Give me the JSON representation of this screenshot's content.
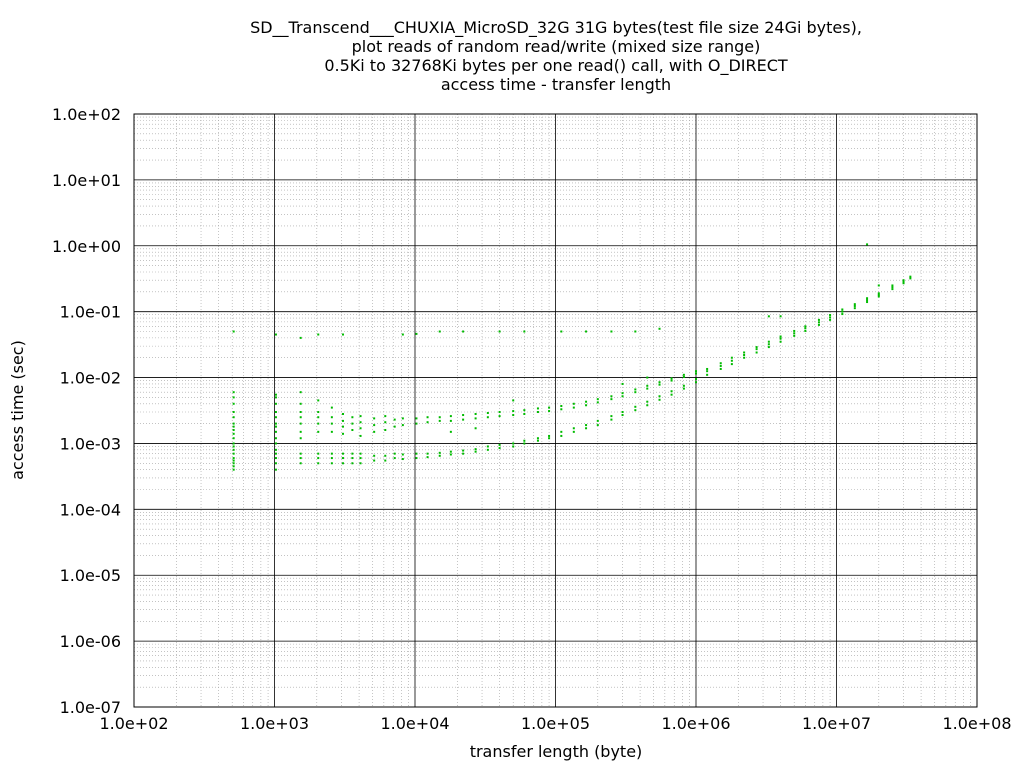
{
  "chart_data": {
    "type": "scatter",
    "title_lines": [
      "SD__Transcend___CHUXIA_MicroSD_32G 31G bytes(test file size 24Gi bytes),",
      "plot reads of random read/write (mixed size range)",
      "0.5Ki to 32768Ki bytes per one read() call, with O_DIRECT",
      "access time - transfer length"
    ],
    "xlabel": "transfer length (byte)",
    "ylabel": "access time (sec)",
    "x_scale": "log",
    "y_scale": "log",
    "xlim": [
      100,
      100000000
    ],
    "ylim": [
      1e-07,
      100
    ],
    "x_ticks": [
      {
        "value": 100,
        "label": "1.0e+02"
      },
      {
        "value": 1000,
        "label": "1.0e+03"
      },
      {
        "value": 10000,
        "label": "1.0e+04"
      },
      {
        "value": 100000,
        "label": "1.0e+05"
      },
      {
        "value": 1000000,
        "label": "1.0e+06"
      },
      {
        "value": 10000000,
        "label": "1.0e+07"
      },
      {
        "value": 100000000,
        "label": "1.0e+08"
      }
    ],
    "y_ticks": [
      {
        "value": 100,
        "label": "1.0e+02"
      },
      {
        "value": 10,
        "label": "1.0e+01"
      },
      {
        "value": 1,
        "label": "1.0e+00"
      },
      {
        "value": 0.1,
        "label": "1.0e-01"
      },
      {
        "value": 0.01,
        "label": "1.0e-02"
      },
      {
        "value": 0.001,
        "label": "1.0e-03"
      },
      {
        "value": 0.0001,
        "label": "1.0e-04"
      },
      {
        "value": 1e-05,
        "label": "1.0e-05"
      },
      {
        "value": 1e-06,
        "label": "1.0e-06"
      },
      {
        "value": 1e-07,
        "label": "1.0e-07"
      }
    ],
    "grid": true,
    "series": [
      {
        "color": "#00bb00",
        "points": [
          [
            512,
            0.0004
          ],
          [
            512,
            0.00045
          ],
          [
            512,
            0.0005
          ],
          [
            512,
            0.00055
          ],
          [
            512,
            0.0006
          ],
          [
            512,
            0.0007
          ],
          [
            512,
            0.0008
          ],
          [
            512,
            0.0009
          ],
          [
            512,
            0.001
          ],
          [
            512,
            0.0012
          ],
          [
            512,
            0.0014
          ],
          [
            512,
            0.0016
          ],
          [
            512,
            0.0018
          ],
          [
            512,
            0.002
          ],
          [
            512,
            0.0025
          ],
          [
            512,
            0.003
          ],
          [
            512,
            0.004
          ],
          [
            512,
            0.005
          ],
          [
            512,
            0.006
          ],
          [
            512,
            0.05
          ],
          [
            1024,
            0.0004
          ],
          [
            1024,
            0.0005
          ],
          [
            1024,
            0.0006
          ],
          [
            1024,
            0.0007
          ],
          [
            1024,
            0.0008
          ],
          [
            1024,
            0.001
          ],
          [
            1024,
            0.0012
          ],
          [
            1024,
            0.0015
          ],
          [
            1024,
            0.0018
          ],
          [
            1024,
            0.002
          ],
          [
            1024,
            0.0025
          ],
          [
            1024,
            0.003
          ],
          [
            1024,
            0.004
          ],
          [
            1024,
            0.005
          ],
          [
            1024,
            0.0055
          ],
          [
            1024,
            0.045
          ],
          [
            1536,
            0.0005
          ],
          [
            1536,
            0.0006
          ],
          [
            1536,
            0.0007
          ],
          [
            1536,
            0.0012
          ],
          [
            1536,
            0.0015
          ],
          [
            1536,
            0.002
          ],
          [
            1536,
            0.0025
          ],
          [
            1536,
            0.003
          ],
          [
            1536,
            0.004
          ],
          [
            1536,
            0.006
          ],
          [
            1536,
            0.04
          ],
          [
            2048,
            0.0005
          ],
          [
            2048,
            0.0006
          ],
          [
            2048,
            0.0007
          ],
          [
            2048,
            0.0015
          ],
          [
            2048,
            0.002
          ],
          [
            2048,
            0.0025
          ],
          [
            2048,
            0.003
          ],
          [
            2048,
            0.0045
          ],
          [
            2048,
            0.045
          ],
          [
            2560,
            0.0005
          ],
          [
            2560,
            0.0006
          ],
          [
            2560,
            0.0007
          ],
          [
            2560,
            0.0015
          ],
          [
            2560,
            0.002
          ],
          [
            2560,
            0.0025
          ],
          [
            2560,
            0.0035
          ],
          [
            3072,
            0.0005
          ],
          [
            3072,
            0.0006
          ],
          [
            3072,
            0.0007
          ],
          [
            3072,
            0.0014
          ],
          [
            3072,
            0.0018
          ],
          [
            3072,
            0.0022
          ],
          [
            3072,
            0.0028
          ],
          [
            3072,
            0.045
          ],
          [
            3584,
            0.0005
          ],
          [
            3584,
            0.0006
          ],
          [
            3584,
            0.0007
          ],
          [
            3584,
            0.0016
          ],
          [
            3584,
            0.002
          ],
          [
            3584,
            0.0025
          ],
          [
            4096,
            0.0005
          ],
          [
            4096,
            0.0006
          ],
          [
            4096,
            0.0007
          ],
          [
            4096,
            0.0013
          ],
          [
            4096,
            0.0017
          ],
          [
            4096,
            0.0021
          ],
          [
            4096,
            0.0026
          ],
          [
            5120,
            0.00055
          ],
          [
            5120,
            0.00065
          ],
          [
            5120,
            0.0015
          ],
          [
            5120,
            0.0019
          ],
          [
            5120,
            0.0024
          ],
          [
            6144,
            0.00055
          ],
          [
            6144,
            0.00065
          ],
          [
            6144,
            0.0016
          ],
          [
            6144,
            0.0021
          ],
          [
            6144,
            0.0026
          ],
          [
            7168,
            0.0006
          ],
          [
            7168,
            0.0007
          ],
          [
            7168,
            0.0018
          ],
          [
            7168,
            0.0023
          ],
          [
            8192,
            0.00058
          ],
          [
            8192,
            0.00068
          ],
          [
            8192,
            0.0019
          ],
          [
            8192,
            0.0024
          ],
          [
            8192,
            0.045
          ],
          [
            10240,
            0.0006
          ],
          [
            10240,
            0.0007
          ],
          [
            10240,
            0.002
          ],
          [
            10240,
            0.0024
          ],
          [
            10240,
            0.046
          ],
          [
            12288,
            0.00062
          ],
          [
            12288,
            0.0007
          ],
          [
            12288,
            0.0021
          ],
          [
            12288,
            0.0025
          ],
          [
            15000,
            0.00065
          ],
          [
            15000,
            0.00072
          ],
          [
            15000,
            0.0022
          ],
          [
            15000,
            0.0025
          ],
          [
            15000,
            0.05
          ],
          [
            18000,
            0.00068
          ],
          [
            18000,
            0.00075
          ],
          [
            18000,
            0.0022
          ],
          [
            18000,
            0.0026
          ],
          [
            18000,
            0.0015
          ],
          [
            22000,
            0.0007
          ],
          [
            22000,
            0.00078
          ],
          [
            22000,
            0.0023
          ],
          [
            22000,
            0.0027
          ],
          [
            22000,
            0.05
          ],
          [
            27000,
            0.00075
          ],
          [
            27000,
            0.00082
          ],
          [
            27000,
            0.0024
          ],
          [
            27000,
            0.0028
          ],
          [
            27000,
            0.0017
          ],
          [
            33000,
            0.0008
          ],
          [
            33000,
            0.0009
          ],
          [
            33000,
            0.0025
          ],
          [
            33000,
            0.0029
          ],
          [
            40000,
            0.00085
          ],
          [
            40000,
            0.00095
          ],
          [
            40000,
            0.0026
          ],
          [
            40000,
            0.003
          ],
          [
            40000,
            0.05
          ],
          [
            50000,
            0.0009
          ],
          [
            50000,
            0.001
          ],
          [
            50000,
            0.0027
          ],
          [
            50000,
            0.0031
          ],
          [
            50000,
            0.0045
          ],
          [
            60000,
            0.001
          ],
          [
            60000,
            0.0011
          ],
          [
            60000,
            0.0028
          ],
          [
            60000,
            0.0032
          ],
          [
            60000,
            0.05
          ],
          [
            75000,
            0.0011
          ],
          [
            75000,
            0.0012
          ],
          [
            75000,
            0.003
          ],
          [
            75000,
            0.0034
          ],
          [
            90000,
            0.0012
          ],
          [
            90000,
            0.0013
          ],
          [
            90000,
            0.0031
          ],
          [
            90000,
            0.0035
          ],
          [
            110000,
            0.0013
          ],
          [
            110000,
            0.0015
          ],
          [
            110000,
            0.0033
          ],
          [
            110000,
            0.0037
          ],
          [
            110000,
            0.05
          ],
          [
            135000,
            0.0015
          ],
          [
            135000,
            0.0017
          ],
          [
            135000,
            0.0035
          ],
          [
            135000,
            0.004
          ],
          [
            165000,
            0.0017
          ],
          [
            165000,
            0.0019
          ],
          [
            165000,
            0.0038
          ],
          [
            165000,
            0.0043
          ],
          [
            165000,
            0.05
          ],
          [
            200000,
            0.0019
          ],
          [
            200000,
            0.0022
          ],
          [
            200000,
            0.0042
          ],
          [
            200000,
            0.0047
          ],
          [
            250000,
            0.0023
          ],
          [
            250000,
            0.0026
          ],
          [
            250000,
            0.0047
          ],
          [
            250000,
            0.0052
          ],
          [
            250000,
            0.05
          ],
          [
            300000,
            0.0027
          ],
          [
            300000,
            0.003
          ],
          [
            300000,
            0.0052
          ],
          [
            300000,
            0.0058
          ],
          [
            300000,
            0.008
          ],
          [
            370000,
            0.0032
          ],
          [
            370000,
            0.0036
          ],
          [
            370000,
            0.006
          ],
          [
            370000,
            0.0066
          ],
          [
            370000,
            0.05
          ],
          [
            450000,
            0.0038
          ],
          [
            450000,
            0.0043
          ],
          [
            450000,
            0.0068
          ],
          [
            450000,
            0.0075
          ],
          [
            450000,
            0.01
          ],
          [
            550000,
            0.0046
          ],
          [
            550000,
            0.0052
          ],
          [
            550000,
            0.0078
          ],
          [
            550000,
            0.0085
          ],
          [
            550000,
            0.055
          ],
          [
            670000,
            0.0055
          ],
          [
            670000,
            0.0062
          ],
          [
            670000,
            0.009
          ],
          [
            670000,
            0.0097
          ],
          [
            820000,
            0.0068
          ],
          [
            820000,
            0.0075
          ],
          [
            820000,
            0.0102
          ],
          [
            820000,
            0.011
          ],
          [
            1000000,
            0.0085
          ],
          [
            1000000,
            0.0095
          ],
          [
            1000000,
            0.0115
          ],
          [
            1000000,
            0.0125
          ],
          [
            1200000,
            0.011
          ],
          [
            1200000,
            0.0125
          ],
          [
            1200000,
            0.0135
          ],
          [
            1500000,
            0.0135
          ],
          [
            1500000,
            0.015
          ],
          [
            1500000,
            0.0165
          ],
          [
            1800000,
            0.016
          ],
          [
            1800000,
            0.018
          ],
          [
            1800000,
            0.02
          ],
          [
            2200000,
            0.02
          ],
          [
            2200000,
            0.022
          ],
          [
            2200000,
            0.024
          ],
          [
            2700000,
            0.024
          ],
          [
            2700000,
            0.027
          ],
          [
            2700000,
            0.029
          ],
          [
            3300000,
            0.029
          ],
          [
            3300000,
            0.032
          ],
          [
            3300000,
            0.035
          ],
          [
            3300000,
            0.085
          ],
          [
            4000000,
            0.035
          ],
          [
            4000000,
            0.039
          ],
          [
            4000000,
            0.042
          ],
          [
            4000000,
            0.085
          ],
          [
            5000000,
            0.043
          ],
          [
            5000000,
            0.047
          ],
          [
            5000000,
            0.051
          ],
          [
            6000000,
            0.051
          ],
          [
            6000000,
            0.056
          ],
          [
            6000000,
            0.06
          ],
          [
            7500000,
            0.063
          ],
          [
            7500000,
            0.069
          ],
          [
            7500000,
            0.075
          ],
          [
            9000000,
            0.075
          ],
          [
            9000000,
            0.082
          ],
          [
            9000000,
            0.089
          ],
          [
            11000000,
            0.092
          ],
          [
            11000000,
            0.1
          ],
          [
            11000000,
            0.108
          ],
          [
            13500000,
            0.113
          ],
          [
            13500000,
            0.122
          ],
          [
            13500000,
            0.13
          ],
          [
            16500000,
            0.14
          ],
          [
            16500000,
            0.15
          ],
          [
            16500000,
            0.16
          ],
          [
            16500000,
            1.05
          ],
          [
            20000000,
            0.17
          ],
          [
            20000000,
            0.18
          ],
          [
            20000000,
            0.19
          ],
          [
            20000000,
            0.25
          ],
          [
            25000000,
            0.22
          ],
          [
            25000000,
            0.235
          ],
          [
            25000000,
            0.25
          ],
          [
            30000000,
            0.27
          ],
          [
            30000000,
            0.285
          ],
          [
            30000000,
            0.3
          ],
          [
            33554432,
            0.32
          ],
          [
            33554432,
            0.34
          ]
        ]
      }
    ]
  }
}
